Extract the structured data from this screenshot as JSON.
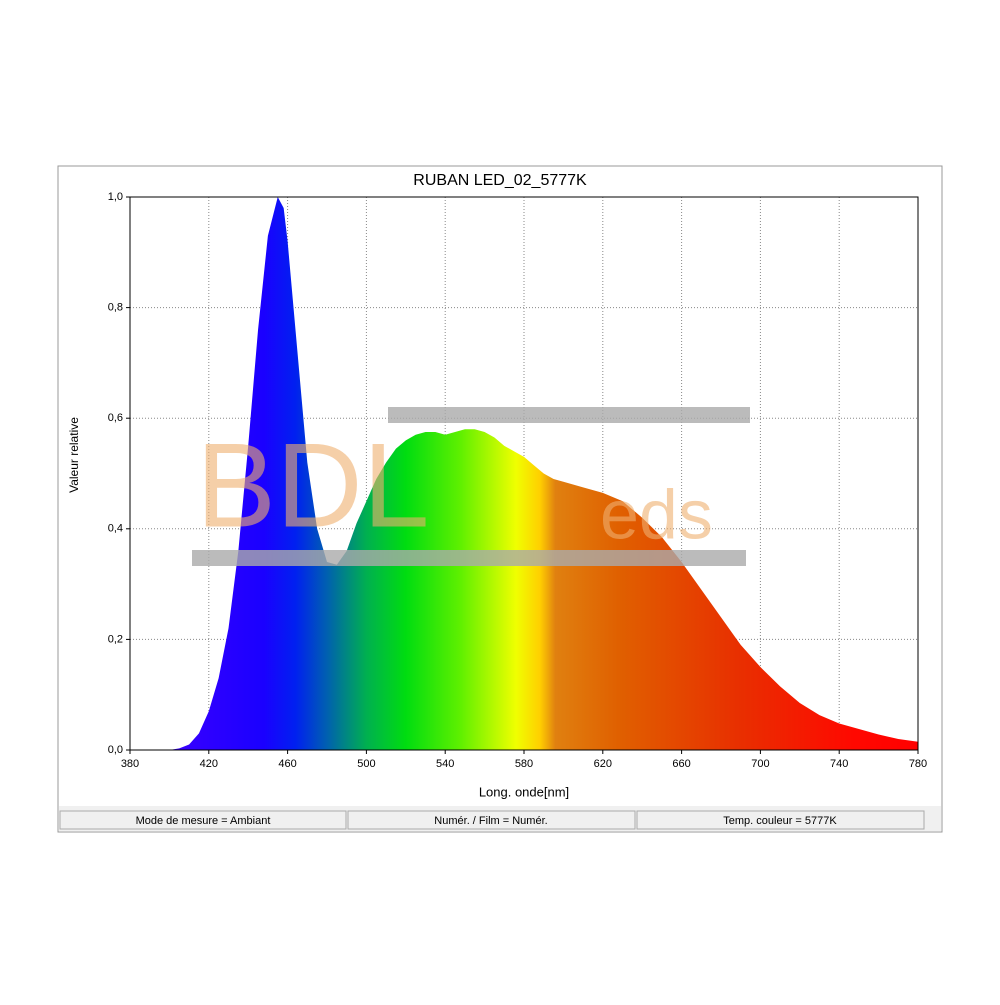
{
  "chart_data": {
    "type": "area",
    "title": "RUBAN LED_02_5777K",
    "x_label": "Long. onde[nm]",
    "y_label": "Valeur relative",
    "x": [
      400,
      405,
      410,
      415,
      420,
      425,
      430,
      435,
      440,
      445,
      450,
      455,
      458,
      460,
      465,
      470,
      475,
      480,
      485,
      490,
      495,
      500,
      505,
      510,
      515,
      520,
      525,
      530,
      535,
      540,
      545,
      550,
      555,
      560,
      565,
      570,
      575,
      580,
      585,
      590,
      595,
      600,
      610,
      620,
      630,
      640,
      650,
      660,
      670,
      680,
      690,
      700,
      710,
      720,
      730,
      740,
      750,
      760,
      770,
      780
    ],
    "values": [
      0,
      0.003,
      0.01,
      0.03,
      0.07,
      0.13,
      0.22,
      0.36,
      0.55,
      0.76,
      0.93,
      1.0,
      0.98,
      0.92,
      0.72,
      0.52,
      0.4,
      0.34,
      0.335,
      0.36,
      0.41,
      0.45,
      0.49,
      0.52,
      0.545,
      0.56,
      0.57,
      0.575,
      0.575,
      0.57,
      0.575,
      0.58,
      0.58,
      0.575,
      0.565,
      0.55,
      0.54,
      0.53,
      0.515,
      0.5,
      0.49,
      0.485,
      0.475,
      0.465,
      0.45,
      0.42,
      0.385,
      0.34,
      0.29,
      0.24,
      0.19,
      0.15,
      0.115,
      0.085,
      0.063,
      0.048,
      0.038,
      0.028,
      0.02,
      0.015
    ],
    "xlim": [
      380,
      780
    ],
    "xticks": [
      380,
      420,
      460,
      500,
      540,
      580,
      620,
      660,
      700,
      740,
      780
    ],
    "ylim": [
      0,
      1
    ],
    "yticks": [
      {
        "value": 0,
        "label": "0,0"
      },
      {
        "value": 0.2,
        "label": "0,2"
      },
      {
        "value": 0.4,
        "label": "0,4"
      },
      {
        "value": 0.6,
        "label": "0,6"
      },
      {
        "value": 0.8,
        "label": "0,8"
      },
      {
        "value": 1,
        "label": "1,0"
      }
    ],
    "grid": true
  },
  "watermark": [
    "BDL",
    "eds"
  ],
  "status_bar": [
    "Mode de mesure = Ambiant",
    "Numér. / Film = Numér.",
    "Temp. couleur = 5777K"
  ]
}
